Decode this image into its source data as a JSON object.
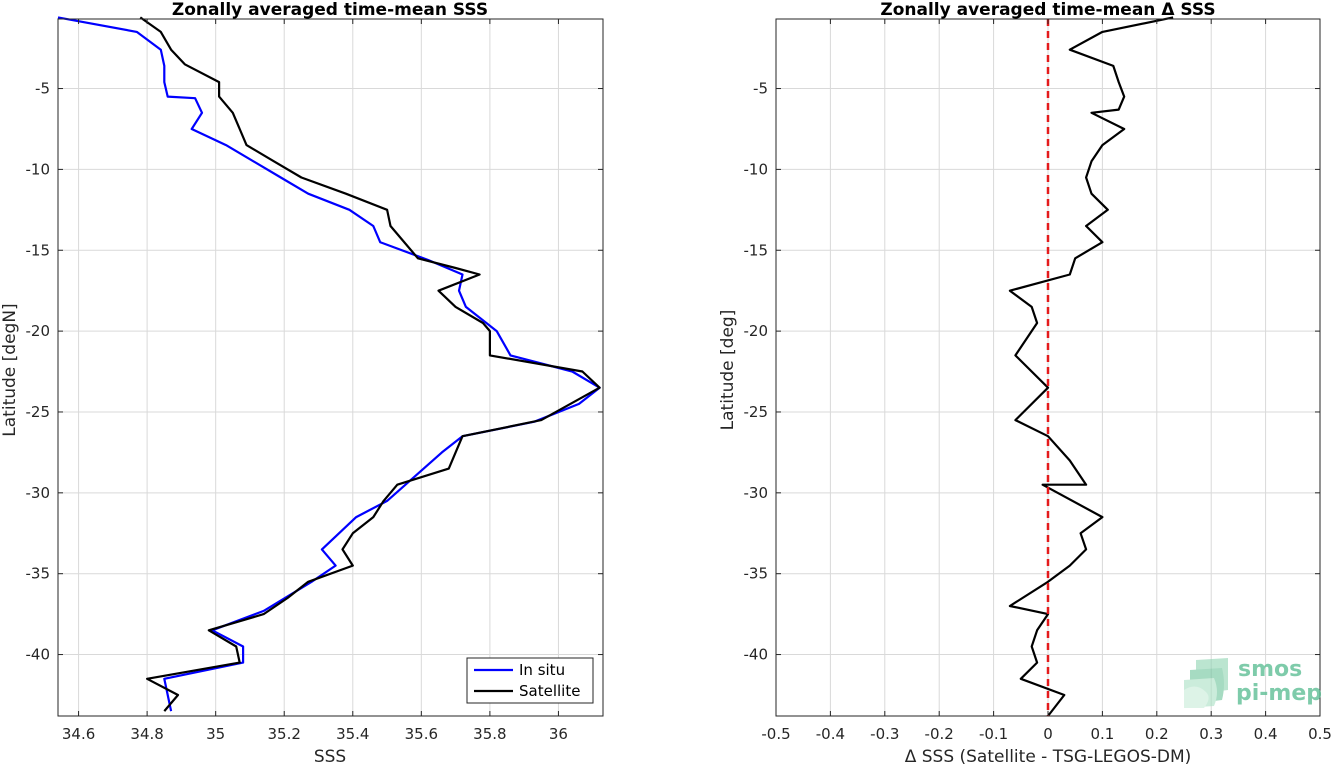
{
  "colors": {
    "in_situ": "#0000ff",
    "satellite": "#000000",
    "zero_line": "#e41a1c",
    "grid": "#d9d9d9",
    "logo_green": "#5fbf95"
  },
  "logo": {
    "line1": "smos",
    "line2": "pi-mep",
    "icon": "layered-waves-icon"
  },
  "chart_data": [
    {
      "type": "line",
      "title": "Zonally averaged time-mean SSS",
      "xlabel": "SSS",
      "ylabel": "Latitude [degN]",
      "xlim": [
        34.54,
        36.13
      ],
      "ylim": [
        -43.8,
        -0.7
      ],
      "xticks": [
        34.6,
        34.8,
        35,
        35.2,
        35.4,
        35.6,
        35.8,
        36
      ],
      "xtick_labels": [
        "34.6",
        "34.8",
        "35",
        "35.2",
        "35.4",
        "35.6",
        "35.8",
        "36"
      ],
      "yticks": [
        -5,
        -10,
        -15,
        -20,
        -25,
        -30,
        -35,
        -40
      ],
      "ytick_labels": [
        "-5",
        "-10",
        "-15",
        "-20",
        "-25",
        "-30",
        "-35",
        "-40"
      ],
      "grid": true,
      "legend": {
        "position": "bottom-right",
        "entries": [
          "In situ",
          "Satellite"
        ]
      },
      "series": [
        {
          "name": "In situ",
          "color": "#0000ff",
          "points": [
            [
              34.54,
              -0.6
            ],
            [
              34.77,
              -1.5
            ],
            [
              34.84,
              -2.6
            ],
            [
              34.85,
              -3.6
            ],
            [
              34.85,
              -4.6
            ],
            [
              34.86,
              -5.5
            ],
            [
              34.94,
              -5.6
            ],
            [
              34.96,
              -6.5
            ],
            [
              34.93,
              -7.5
            ],
            [
              35.03,
              -8.5
            ],
            [
              35.19,
              -10.5
            ],
            [
              35.27,
              -11.5
            ],
            [
              35.39,
              -12.5
            ],
            [
              35.46,
              -13.5
            ],
            [
              35.48,
              -14.5
            ],
            [
              35.62,
              -15.6
            ],
            [
              35.72,
              -16.5
            ],
            [
              35.71,
              -17.5
            ],
            [
              35.73,
              -18.5
            ],
            [
              35.82,
              -20.0
            ],
            [
              35.86,
              -21.5
            ],
            [
              36.04,
              -22.5
            ],
            [
              36.12,
              -23.5
            ],
            [
              36.06,
              -24.5
            ],
            [
              35.93,
              -25.6
            ],
            [
              35.72,
              -26.5
            ],
            [
              35.66,
              -27.5
            ],
            [
              35.58,
              -29.0
            ],
            [
              35.5,
              -30.5
            ],
            [
              35.41,
              -31.5
            ],
            [
              35.31,
              -33.5
            ],
            [
              35.35,
              -34.5
            ],
            [
              35.28,
              -35.5
            ],
            [
              35.14,
              -37.3
            ],
            [
              34.99,
              -38.5
            ],
            [
              35.08,
              -39.5
            ],
            [
              35.08,
              -40.5
            ],
            [
              34.85,
              -41.5
            ],
            [
              34.87,
              -43.5
            ]
          ]
        },
        {
          "name": "Satellite",
          "color": "#000000",
          "points": [
            [
              34.78,
              -0.6
            ],
            [
              34.84,
              -1.5
            ],
            [
              34.87,
              -2.6
            ],
            [
              34.91,
              -3.5
            ],
            [
              35.01,
              -4.6
            ],
            [
              35.01,
              -5.5
            ],
            [
              35.05,
              -6.5
            ],
            [
              35.07,
              -7.5
            ],
            [
              35.09,
              -8.5
            ],
            [
              35.17,
              -9.5
            ],
            [
              35.25,
              -10.5
            ],
            [
              35.38,
              -11.5
            ],
            [
              35.5,
              -12.5
            ],
            [
              35.51,
              -13.5
            ],
            [
              35.59,
              -15.5
            ],
            [
              35.7,
              -16.1
            ],
            [
              35.77,
              -16.5
            ],
            [
              35.65,
              -17.5
            ],
            [
              35.7,
              -18.5
            ],
            [
              35.78,
              -19.5
            ],
            [
              35.8,
              -20.0
            ],
            [
              35.8,
              -21.5
            ],
            [
              36.07,
              -22.5
            ],
            [
              36.12,
              -23.5
            ],
            [
              35.95,
              -25.5
            ],
            [
              35.72,
              -26.5
            ],
            [
              35.7,
              -27.5
            ],
            [
              35.68,
              -28.5
            ],
            [
              35.53,
              -29.5
            ],
            [
              35.49,
              -30.5
            ],
            [
              35.46,
              -31.5
            ],
            [
              35.4,
              -32.5
            ],
            [
              35.37,
              -33.5
            ],
            [
              35.4,
              -34.5
            ],
            [
              35.27,
              -35.5
            ],
            [
              35.21,
              -36.5
            ],
            [
              35.14,
              -37.5
            ],
            [
              34.98,
              -38.5
            ],
            [
              35.06,
              -39.5
            ],
            [
              35.07,
              -40.5
            ],
            [
              34.8,
              -41.5
            ],
            [
              34.89,
              -42.5
            ],
            [
              34.85,
              -43.5
            ]
          ]
        }
      ]
    },
    {
      "type": "line",
      "title": "Zonally averaged time-mean Δ SSS",
      "xlabel": "Δ SSS (Satellite - TSG-LEGOS-DM)",
      "ylabel": "Latitude [deg]",
      "xlim": [
        -0.5,
        0.5
      ],
      "ylim": [
        -43.8,
        -0.7
      ],
      "xticks": [
        -0.5,
        -0.4,
        -0.3,
        -0.2,
        -0.1,
        0,
        0.1,
        0.2,
        0.3,
        0.4,
        0.5
      ],
      "xtick_labels": [
        "-0.5",
        "-0.4",
        "-0.3",
        "-0.2",
        "-0.1",
        "0",
        "0.1",
        "0.2",
        "0.3",
        "0.4",
        "0.5"
      ],
      "yticks": [
        -5,
        -10,
        -15,
        -20,
        -25,
        -30,
        -35,
        -40
      ],
      "ytick_labels": [
        "-5",
        "-10",
        "-15",
        "-20",
        "-25",
        "-30",
        "-35",
        "-40"
      ],
      "grid": true,
      "reference_line": {
        "x": 0,
        "style": "dashed",
        "color": "#e41a1c"
      },
      "series": [
        {
          "color": "#000000",
          "points": [
            [
              0.23,
              -0.6
            ],
            [
              0.1,
              -1.5
            ],
            [
              0.04,
              -2.6
            ],
            [
              0.12,
              -3.6
            ],
            [
              0.13,
              -4.6
            ],
            [
              0.14,
              -5.5
            ],
            [
              0.13,
              -6.3
            ],
            [
              0.08,
              -6.5
            ],
            [
              0.14,
              -7.5
            ],
            [
              0.1,
              -8.5
            ],
            [
              0.08,
              -9.5
            ],
            [
              0.07,
              -10.5
            ],
            [
              0.08,
              -11.5
            ],
            [
              0.11,
              -12.5
            ],
            [
              0.07,
              -13.5
            ],
            [
              0.1,
              -14.5
            ],
            [
              0.05,
              -15.5
            ],
            [
              0.04,
              -16.5
            ],
            [
              -0.07,
              -17.5
            ],
            [
              -0.03,
              -18.5
            ],
            [
              -0.02,
              -19.5
            ],
            [
              -0.06,
              -21.5
            ],
            [
              0.0,
              -23.5
            ],
            [
              -0.06,
              -25.5
            ],
            [
              0.0,
              -26.5
            ],
            [
              0.04,
              -28.0
            ],
            [
              0.07,
              -29.5
            ],
            [
              -0.01,
              -29.5
            ],
            [
              0.1,
              -31.5
            ],
            [
              0.06,
              -32.5
            ],
            [
              0.07,
              -33.5
            ],
            [
              0.04,
              -34.5
            ],
            [
              0.0,
              -35.5
            ],
            [
              -0.07,
              -37.0
            ],
            [
              0.0,
              -37.5
            ],
            [
              -0.02,
              -38.5
            ],
            [
              -0.03,
              -39.5
            ],
            [
              -0.02,
              -40.5
            ],
            [
              -0.05,
              -41.5
            ],
            [
              0.03,
              -42.5
            ],
            [
              0.0,
              -43.8
            ]
          ]
        }
      ]
    }
  ]
}
